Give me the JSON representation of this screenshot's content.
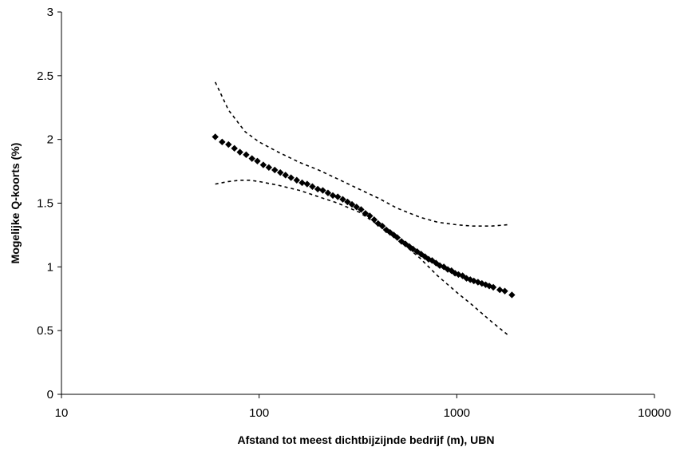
{
  "chart_data": {
    "type": "scatter",
    "title": "",
    "xlabel": "Afstand tot meest dichtbijzijnde bedrijf (m), UBN",
    "ylabel": "Mogelijke Q-koorts (%)",
    "x_scale": "log",
    "xlim": [
      10,
      10000
    ],
    "ylim": [
      0,
      3
    ],
    "x_ticks": [
      "10",
      "100",
      "1000",
      "10000"
    ],
    "y_ticks": [
      "0",
      "0.5",
      "1",
      "1.5",
      "2",
      "2.5",
      "3"
    ],
    "grid": false,
    "legend": "none",
    "series": [
      {
        "style": "diamond-markers",
        "x": [
          60,
          65,
          70,
          75,
          80,
          86,
          92,
          98,
          105,
          112,
          120,
          128,
          136,
          145,
          155,
          165,
          175,
          186,
          198,
          210,
          223,
          236,
          250,
          265,
          280,
          295,
          311,
          328,
          345,
          363,
          382,
          400,
          420,
          440,
          460,
          480,
          500,
          525,
          550,
          575,
          600,
          630,
          660,
          690,
          720,
          750,
          785,
          820,
          860,
          900,
          940,
          980,
          1020,
          1070,
          1120,
          1170,
          1220,
          1280,
          1340,
          1400,
          1460,
          1530,
          1650,
          1750,
          1900
        ],
        "y": [
          2.02,
          1.98,
          1.96,
          1.93,
          1.9,
          1.88,
          1.85,
          1.83,
          1.8,
          1.78,
          1.76,
          1.74,
          1.72,
          1.7,
          1.68,
          1.66,
          1.65,
          1.63,
          1.61,
          1.6,
          1.58,
          1.56,
          1.55,
          1.53,
          1.51,
          1.49,
          1.47,
          1.45,
          1.42,
          1.4,
          1.37,
          1.34,
          1.32,
          1.29,
          1.27,
          1.25,
          1.23,
          1.2,
          1.18,
          1.16,
          1.14,
          1.12,
          1.1,
          1.08,
          1.06,
          1.05,
          1.03,
          1.01,
          1.0,
          0.98,
          0.97,
          0.95,
          0.94,
          0.93,
          0.91,
          0.9,
          0.89,
          0.88,
          0.87,
          0.86,
          0.85,
          0.84,
          0.82,
          0.81,
          0.78
        ]
      },
      {
        "style": "dashed-upper",
        "x": [
          60,
          70,
          85,
          100,
          125,
          160,
          200,
          250,
          320,
          400,
          500,
          650,
          800,
          1000,
          1200,
          1500,
          1800
        ],
        "y": [
          2.45,
          2.23,
          2.06,
          1.98,
          1.9,
          1.82,
          1.76,
          1.69,
          1.61,
          1.54,
          1.46,
          1.39,
          1.35,
          1.33,
          1.32,
          1.32,
          1.33
        ]
      },
      {
        "style": "dashed-lower",
        "x": [
          60,
          70,
          80,
          90,
          100,
          125,
          160,
          200,
          250,
          320,
          400,
          500,
          650,
          800,
          1000,
          1200,
          1500,
          1800
        ],
        "y": [
          1.65,
          1.67,
          1.68,
          1.68,
          1.67,
          1.64,
          1.6,
          1.55,
          1.5,
          1.43,
          1.33,
          1.22,
          1.07,
          0.93,
          0.8,
          0.7,
          0.57,
          0.47
        ]
      }
    ]
  }
}
